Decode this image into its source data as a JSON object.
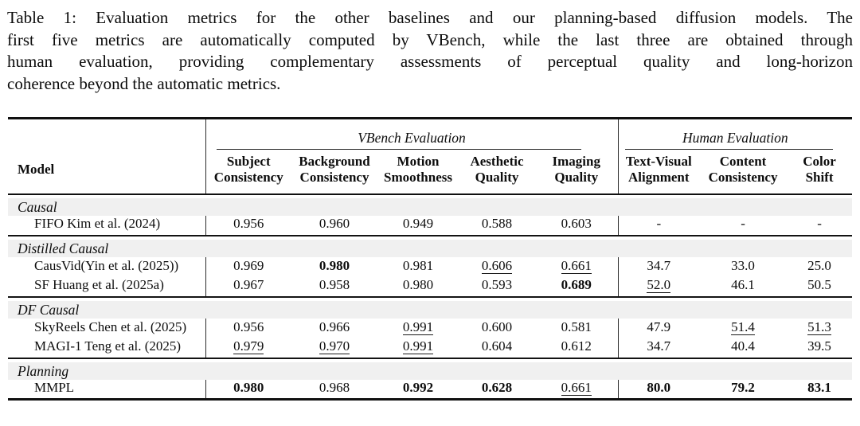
{
  "caption_lines": [
    "Table 1: Evaluation metrics for the other baselines and our planning-based diffusion models. The",
    "first five metrics are automatically computed by VBench, while the last three are obtained through",
    "human evaluation, providing complementary assessments of perceptual quality and long-horizon",
    "coherence beyond the automatic metrics."
  ],
  "colors": {
    "text": "#0d0d0d",
    "section_band": "#f0f0f0",
    "rule": "#101010"
  },
  "table": {
    "groups": [
      {
        "label": "VBench Evaluation",
        "span": 5
      },
      {
        "label": "Human Evaluation",
        "span": 3
      }
    ],
    "columns": [
      [
        "Model"
      ],
      [
        "Subject",
        "Consistency"
      ],
      [
        "Background",
        "Consistency"
      ],
      [
        "Motion",
        "Smoothness"
      ],
      [
        "Aesthetic",
        "Quality"
      ],
      [
        "Imaging",
        "Quality"
      ],
      [
        "Text-Visual",
        "Alignment"
      ],
      [
        "Content",
        "Consistency"
      ],
      [
        "Color",
        "Shift"
      ]
    ],
    "sections": [
      {
        "name": "Causal",
        "rows": [
          {
            "model": "FIFO Kim et al. (2024)",
            "values": [
              "0.956",
              "0.960",
              "0.949",
              "0.588",
              "0.603",
              "-",
              "-",
              "-"
            ],
            "styles": [
              "",
              "",
              "",
              "",
              "",
              "",
              "",
              ""
            ]
          }
        ]
      },
      {
        "name": "Distilled Causal",
        "rows": [
          {
            "model": "CausVid(Yin et al. (2025))",
            "values": [
              "0.969",
              "0.980",
              "0.981",
              "0.606",
              "0.661",
              "34.7",
              "33.0",
              "25.0"
            ],
            "styles": [
              "",
              "b",
              "",
              "u",
              "u",
              "",
              "",
              ""
            ]
          },
          {
            "model": "SF Huang et al. (2025a)",
            "values": [
              "0.967",
              "0.958",
              "0.980",
              "0.593",
              "0.689",
              "52.0",
              "46.1",
              "50.5"
            ],
            "styles": [
              "",
              "",
              "",
              "",
              "b",
              "u",
              "",
              ""
            ]
          }
        ]
      },
      {
        "name": "DF Causal",
        "rows": [
          {
            "model": "SkyReels Chen et al. (2025)",
            "values": [
              "0.956",
              "0.966",
              "0.991",
              "0.600",
              "0.581",
              "47.9",
              "51.4",
              "51.3"
            ],
            "styles": [
              "",
              "",
              "u",
              "",
              "",
              "",
              "u",
              "u"
            ]
          },
          {
            "model": "MAGI-1 Teng et al. (2025)",
            "values": [
              "0.979",
              "0.970",
              "0.991",
              "0.604",
              "0.612",
              "34.7",
              "40.4",
              "39.5"
            ],
            "styles": [
              "u",
              "u",
              "u",
              "",
              "",
              "",
              "",
              ""
            ]
          }
        ]
      },
      {
        "name": "Planning",
        "rows": [
          {
            "model": "MMPL",
            "values": [
              "0.980",
              "0.968",
              "0.992",
              "0.628",
              "0.661",
              "80.0",
              "79.2",
              "83.1"
            ],
            "styles": [
              "b",
              "",
              "b",
              "b",
              "u",
              "b",
              "b",
              "b"
            ]
          }
        ]
      }
    ]
  }
}
